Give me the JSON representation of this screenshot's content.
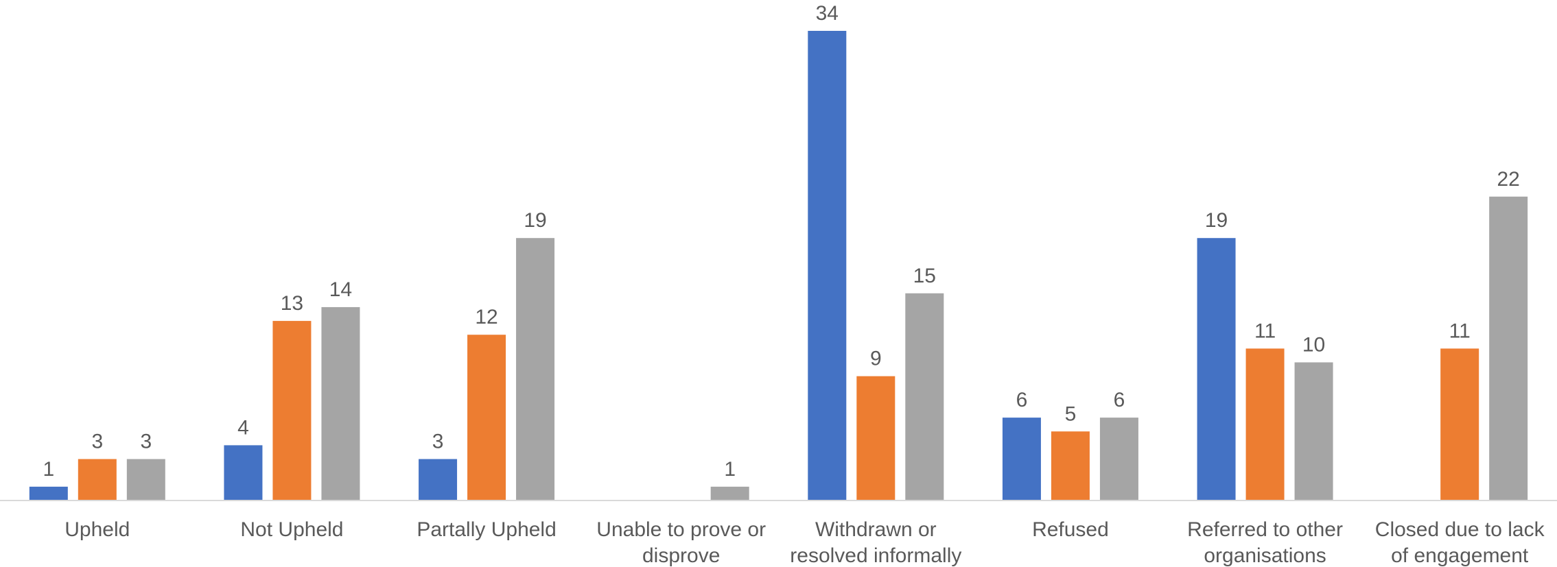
{
  "chart_data": {
    "type": "bar",
    "categories": [
      [
        "Upheld"
      ],
      [
        "Not Upheld"
      ],
      [
        "Partally Upheld"
      ],
      [
        "Unable to prove or",
        "disprove"
      ],
      [
        "Withdrawn or",
        "resolved informally"
      ],
      [
        "Refused"
      ],
      [
        "Referred to other",
        "organisations"
      ],
      [
        "Closed due to lack",
        "of engagement"
      ]
    ],
    "series": [
      {
        "values": [
          1,
          4,
          3,
          null,
          34,
          6,
          19,
          null
        ],
        "color": "#4472C4"
      },
      {
        "values": [
          3,
          13,
          12,
          null,
          9,
          5,
          11,
          11
        ],
        "color": "#ED7D31"
      },
      {
        "values": [
          3,
          14,
          19,
          1,
          15,
          6,
          10,
          22
        ],
        "color": "#A5A5A5"
      }
    ],
    "ylim": [
      0,
      34
    ],
    "grid": false,
    "legend": "none",
    "axis_color": "#D9D9D9"
  }
}
